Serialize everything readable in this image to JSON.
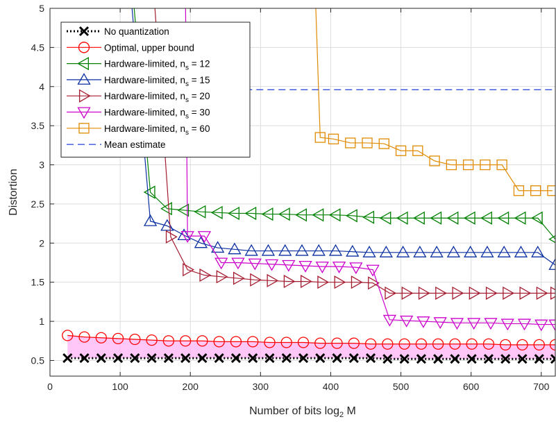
{
  "chart_data": {
    "type": "line",
    "title": "",
    "xlabel": "Number of bits log",
    "xlabel_sub": "2",
    "xlabel_suffix": " M",
    "ylabel": "Distortion",
    "xlim": [
      0,
      720
    ],
    "ylim": [
      0.3,
      5
    ],
    "xticks": [
      0,
      100,
      200,
      300,
      400,
      500,
      600,
      700
    ],
    "yticks": [
      0.5,
      1,
      1.5,
      2,
      2.5,
      3,
      3.5,
      4,
      4.5,
      5
    ],
    "grid": true,
    "legend_position": "top-left",
    "series": [
      {
        "name": "No quantization",
        "color": "#000000",
        "marker": "x",
        "line": "dotted",
        "x": [
          25,
          49,
          73,
          97,
          121,
          145,
          169,
          193,
          217,
          241,
          265,
          289,
          313,
          337,
          361,
          385,
          409,
          433,
          457,
          481,
          505,
          529,
          553,
          577,
          601,
          625,
          649,
          673,
          697,
          720
        ],
        "y": [
          0.53,
          0.53,
          0.53,
          0.53,
          0.53,
          0.53,
          0.53,
          0.53,
          0.53,
          0.53,
          0.53,
          0.53,
          0.53,
          0.53,
          0.53,
          0.53,
          0.53,
          0.53,
          0.53,
          0.52,
          0.52,
          0.52,
          0.52,
          0.52,
          0.52,
          0.52,
          0.52,
          0.52,
          0.52,
          0.52
        ]
      },
      {
        "name": "Optimal, upper bound",
        "color": "#ff0000",
        "marker": "circle",
        "line": "solid",
        "x": [
          25,
          49,
          73,
          97,
          121,
          145,
          169,
          193,
          217,
          241,
          265,
          289,
          313,
          337,
          361,
          385,
          409,
          433,
          457,
          481,
          505,
          529,
          553,
          577,
          601,
          625,
          649,
          673,
          697,
          720
        ],
        "y": [
          0.82,
          0.8,
          0.79,
          0.78,
          0.77,
          0.76,
          0.75,
          0.75,
          0.75,
          0.74,
          0.74,
          0.74,
          0.73,
          0.73,
          0.73,
          0.72,
          0.72,
          0.72,
          0.71,
          0.71,
          0.71,
          0.71,
          0.71,
          0.71,
          0.71,
          0.71,
          0.7,
          0.7,
          0.7,
          0.7
        ]
      },
      {
        "name": "Hardware-limited, n",
        "name_sub": "s",
        "name_suffix": " = 12",
        "color": "#008000",
        "marker": "triangle-left",
        "line": "solid",
        "x": [
          118,
          143,
          167,
          191,
          215,
          239,
          263,
          287,
          311,
          335,
          359,
          383,
          407,
          431,
          455,
          479,
          503,
          527,
          551,
          575,
          599,
          623,
          647,
          671,
          695,
          720
        ],
        "y": [
          5.2,
          2.65,
          2.44,
          2.42,
          2.4,
          2.39,
          2.38,
          2.38,
          2.37,
          2.37,
          2.36,
          2.36,
          2.36,
          2.35,
          2.33,
          2.32,
          2.32,
          2.32,
          2.32,
          2.32,
          2.32,
          2.32,
          2.32,
          2.32,
          2.32,
          2.05
        ]
      },
      {
        "name": "Hardware-limited, n",
        "name_sub": "s",
        "name_suffix": " = 15",
        "color": "#0a2fa0",
        "marker": "triangle-up",
        "line": "solid",
        "x": [
          115,
          143,
          167,
          191,
          215,
          239,
          263,
          287,
          311,
          335,
          359,
          383,
          407,
          431,
          455,
          479,
          503,
          527,
          551,
          575,
          599,
          623,
          647,
          671,
          695,
          720
        ],
        "y": [
          5.2,
          2.28,
          2.22,
          2.1,
          2.0,
          1.94,
          1.92,
          1.9,
          1.9,
          1.9,
          1.9,
          1.9,
          1.9,
          1.89,
          1.88,
          1.88,
          1.88,
          1.88,
          1.88,
          1.88,
          1.88,
          1.88,
          1.88,
          1.88,
          1.88,
          1.72
        ]
      },
      {
        "name": "Hardware-limited, n",
        "name_sub": "s",
        "name_suffix": " = 20",
        "color": "#a51c30",
        "marker": "triangle-right",
        "line": "solid",
        "x": [
          148,
          172,
          196,
          220,
          244,
          268,
          292,
          316,
          340,
          364,
          388,
          412,
          436,
          460,
          484,
          508,
          532,
          556,
          580,
          604,
          628,
          652,
          676,
          700,
          720
        ],
        "y": [
          5.2,
          2.08,
          1.66,
          1.59,
          1.57,
          1.55,
          1.53,
          1.52,
          1.51,
          1.51,
          1.5,
          1.5,
          1.5,
          1.49,
          1.36,
          1.36,
          1.36,
          1.36,
          1.36,
          1.36,
          1.36,
          1.36,
          1.36,
          1.36,
          1.36
        ]
      },
      {
        "name": "Hardware-limited, n",
        "name_sub": "s",
        "name_suffix": " = 30",
        "color": "#cc00cc",
        "marker": "triangle-down",
        "line": "solid",
        "x": [
          193,
          196,
          220,
          244,
          268,
          292,
          316,
          340,
          364,
          388,
          412,
          436,
          460,
          484,
          508,
          532,
          556,
          580,
          604,
          628,
          652,
          676,
          700,
          720
        ],
        "y": [
          5.2,
          2.09,
          2.09,
          1.75,
          1.75,
          1.74,
          1.73,
          1.72,
          1.71,
          1.7,
          1.7,
          1.69,
          1.66,
          1.02,
          1.01,
          1.0,
          0.99,
          0.98,
          0.98,
          0.98,
          0.97,
          0.97,
          0.96,
          0.96
        ]
      },
      {
        "name": "Hardware-limited, n",
        "name_sub": "s",
        "name_suffix": " = 60",
        "color": "#e08a00",
        "marker": "square",
        "line": "solid",
        "x": [
          378,
          385,
          404,
          428,
          452,
          476,
          500,
          524,
          548,
          572,
          596,
          620,
          644,
          668,
          692,
          716
        ],
        "y": [
          5.2,
          3.35,
          3.33,
          3.28,
          3.28,
          3.27,
          3.18,
          3.18,
          3.05,
          3.0,
          3.0,
          3.0,
          3.0,
          2.67,
          2.67,
          2.67
        ]
      },
      {
        "name": "Mean estimate",
        "color": "#1f3fdd",
        "marker": "none",
        "line": "dashed",
        "x": [
          25,
          720
        ],
        "y": [
          3.96,
          3.96
        ]
      }
    ]
  }
}
